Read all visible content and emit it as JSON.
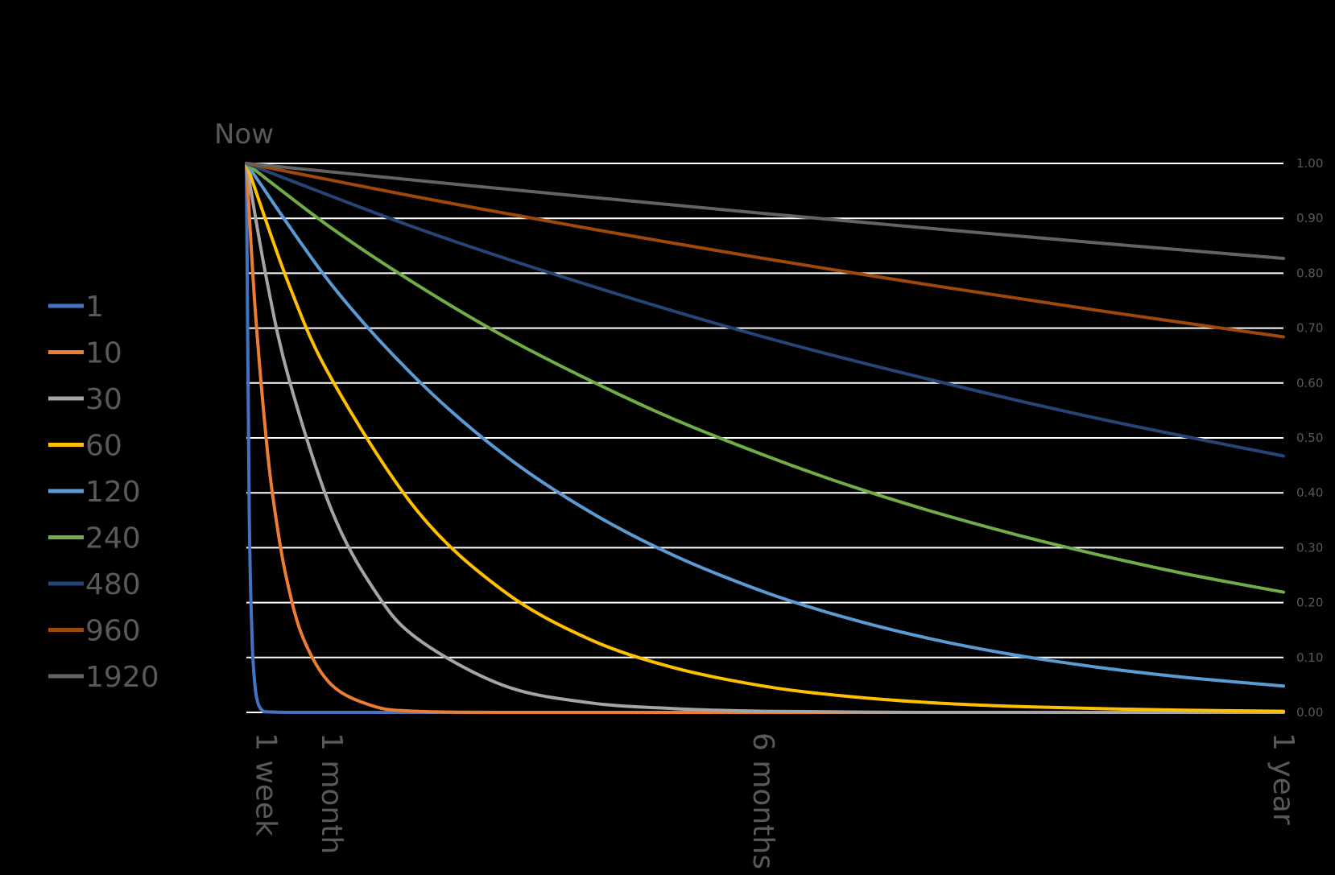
{
  "chart_data": {
    "type": "line",
    "title": "",
    "xlabel": "",
    "ylabel": "",
    "origin_label": "Now",
    "x_units": "days",
    "xlim": [
      0,
      365
    ],
    "ylim": [
      0,
      1
    ],
    "y_ticks": [
      {
        "value": 1.0,
        "label": "1.00"
      },
      {
        "value": 0.9,
        "label": "0.90"
      },
      {
        "value": 0.8,
        "label": "0.80"
      },
      {
        "value": 0.7,
        "label": "0.70"
      },
      {
        "value": 0.6,
        "label": "0.60"
      },
      {
        "value": 0.5,
        "label": "0.50"
      },
      {
        "value": 0.4,
        "label": "0.40"
      },
      {
        "value": 0.3,
        "label": "0.30"
      },
      {
        "value": 0.2,
        "label": "0.20"
      },
      {
        "value": 0.1,
        "label": "0.10"
      },
      {
        "value": 0.0,
        "label": "0.00"
      }
    ],
    "x_ticks": [
      {
        "value": 7,
        "label": "1 week"
      },
      {
        "value": 30,
        "label": "1 month"
      },
      {
        "value": 182,
        "label": "6 months"
      },
      {
        "value": 365,
        "label": "1 year"
      }
    ],
    "grid": true,
    "y_axis_position": "right",
    "legend_position": "left",
    "series": [
      {
        "name": "1",
        "color": "#4472C4",
        "x": [
          0,
          1,
          2,
          3,
          4,
          5,
          6,
          7,
          14,
          30,
          60,
          120,
          182,
          240,
          300,
          365
        ],
        "y": [
          1.0,
          0.368,
          0.135,
          0.05,
          0.018,
          0.007,
          0.002,
          0.001,
          0.0,
          0.0,
          0.0,
          0.0,
          0.0,
          0.0,
          0.0,
          0.0
        ]
      },
      {
        "name": "10",
        "color": "#ED7D31",
        "x": [
          0,
          3,
          7,
          10,
          14,
          20,
          30,
          45,
          60,
          90,
          120,
          182,
          240,
          300,
          365
        ],
        "y": [
          1.0,
          0.741,
          0.497,
          0.368,
          0.247,
          0.135,
          0.05,
          0.011,
          0.002,
          0.0,
          0.0,
          0.0,
          0.0,
          0.0,
          0.0
        ]
      },
      {
        "name": "30",
        "color": "#A5A5A5",
        "x": [
          0,
          7,
          15,
          30,
          45,
          60,
          90,
          120,
          150,
          182,
          240,
          300,
          365
        ],
        "y": [
          1.0,
          0.792,
          0.607,
          0.368,
          0.223,
          0.135,
          0.05,
          0.018,
          0.007,
          0.002,
          0.0,
          0.0,
          0.0
        ]
      },
      {
        "name": "60",
        "color": "#FFC000",
        "x": [
          0,
          15,
          30,
          60,
          90,
          120,
          150,
          182,
          210,
          240,
          270,
          300,
          330,
          365
        ],
        "y": [
          1.0,
          0.779,
          0.607,
          0.368,
          0.223,
          0.135,
          0.082,
          0.048,
          0.03,
          0.018,
          0.011,
          0.007,
          0.004,
          0.002
        ]
      },
      {
        "name": "120",
        "color": "#5B9BD5",
        "x": [
          0,
          30,
          60,
          90,
          120,
          150,
          182,
          210,
          240,
          270,
          300,
          330,
          365
        ],
        "y": [
          1.0,
          0.779,
          0.607,
          0.472,
          0.368,
          0.287,
          0.22,
          0.174,
          0.135,
          0.105,
          0.082,
          0.064,
          0.048
        ]
      },
      {
        "name": "240",
        "color": "#70AD47",
        "x": [
          0,
          30,
          60,
          90,
          120,
          150,
          182,
          210,
          240,
          270,
          300,
          330,
          365
        ],
        "y": [
          1.0,
          0.882,
          0.779,
          0.687,
          0.607,
          0.535,
          0.469,
          0.417,
          0.368,
          0.325,
          0.287,
          0.253,
          0.219
        ]
      },
      {
        "name": "480",
        "color": "#264478",
        "x": [
          0,
          60,
          120,
          182,
          240,
          300,
          365
        ],
        "y": [
          1.0,
          0.882,
          0.779,
          0.684,
          0.607,
          0.535,
          0.467
        ]
      },
      {
        "name": "960",
        "color": "#9E480E",
        "x": [
          0,
          60,
          120,
          182,
          240,
          300,
          365
        ],
        "y": [
          1.0,
          0.939,
          0.882,
          0.827,
          0.779,
          0.732,
          0.684
        ]
      },
      {
        "name": "1920",
        "color": "#636363",
        "x": [
          0,
          60,
          120,
          182,
          240,
          300,
          365
        ],
        "y": [
          1.0,
          0.969,
          0.939,
          0.909,
          0.882,
          0.855,
          0.827
        ]
      }
    ]
  }
}
